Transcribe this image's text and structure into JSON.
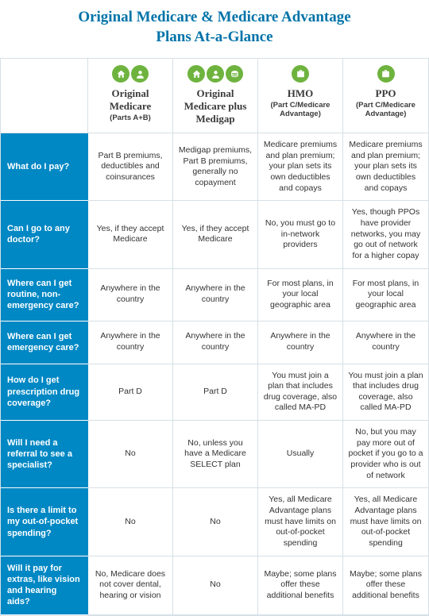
{
  "title_line1": "Original Medicare & Medicare Advantage",
  "title_line2": "Plans At-a-Glance",
  "colors": {
    "title": "#0073a8",
    "row_head_bg": "#0088c4",
    "icon_bg": "#6fb33f",
    "border": "#d6e0e6",
    "text": "#333333"
  },
  "columns": [
    {
      "name": "Original Medicare",
      "sub": "(Parts A+B)",
      "icons": [
        "home",
        "person"
      ]
    },
    {
      "name": "Original Medicare plus Medigap",
      "sub": "",
      "icons": [
        "home",
        "person",
        "coins"
      ]
    },
    {
      "name": "HMO",
      "sub": "(Part C/Medicare Advantage)",
      "icons": [
        "case"
      ]
    },
    {
      "name": "PPO",
      "sub": "(Part C/Medicare Advantage)",
      "icons": [
        "case"
      ]
    }
  ],
  "rows": [
    {
      "q": "What do I pay?",
      "h": "tall",
      "a": [
        "Part B premiums, deductibles and coinsurances",
        "Medigap premiums, Part B premiums, generally no copayment",
        "Medicare premiums and plan premium; your plan sets its own deductibles and copays",
        "Medicare premiums and plan premium; your plan sets its own deductibles and copays"
      ]
    },
    {
      "q": "Can I go to any doctor?",
      "h": "tall",
      "a": [
        "Yes, if they accept Medicare",
        "Yes, if they accept Medicare",
        "No, you must go to in-network providers",
        "Yes, though PPOs have provider networks, you may go out of network for a higher copay"
      ]
    },
    {
      "q": "Where can I get routine, non-emergency care?",
      "h": "med",
      "a": [
        "Anywhere in the country",
        "Anywhere in the country",
        "For most plans, in your local geographic area",
        "For most plans, in your local geographic area"
      ]
    },
    {
      "q": "Where can I get emergency care?",
      "h": "short",
      "a": [
        "Anywhere in the country",
        "Anywhere in the country",
        "Anywhere in the country",
        "Anywhere in the country"
      ]
    },
    {
      "q": "How do I get prescription drug coverage?",
      "h": "med",
      "a": [
        "Part D",
        "Part D",
        "You must join a plan that includes drug coverage, also called MA-PD",
        "You must join a plan that includes drug coverage, also called MA-PD"
      ]
    },
    {
      "q": "Will I need a referral to see a specialist?",
      "h": "tall",
      "a": [
        "No",
        "No, unless you have a Medicare SELECT plan",
        "Usually",
        "No, but you may pay more out of pocket if you go to a provider who is out of network"
      ]
    },
    {
      "q": "Is there a limit to my out-of-pocket spending?",
      "h": "tall",
      "a": [
        "No",
        "No",
        "Yes, all Medicare Advantage plans must have limits on out-of-pocket spending",
        "Yes, all Medicare Advantage plans must have limits on out-of-pocket spending"
      ]
    },
    {
      "q": "Will it pay for extras, like vision and hearing aids?",
      "h": "med",
      "a": [
        "No, Medicare does not cover dental, hearing or vision",
        "No",
        "Maybe; some plans offer these additional benefits",
        "Maybe; some plans offer these additional benefits"
      ]
    }
  ]
}
